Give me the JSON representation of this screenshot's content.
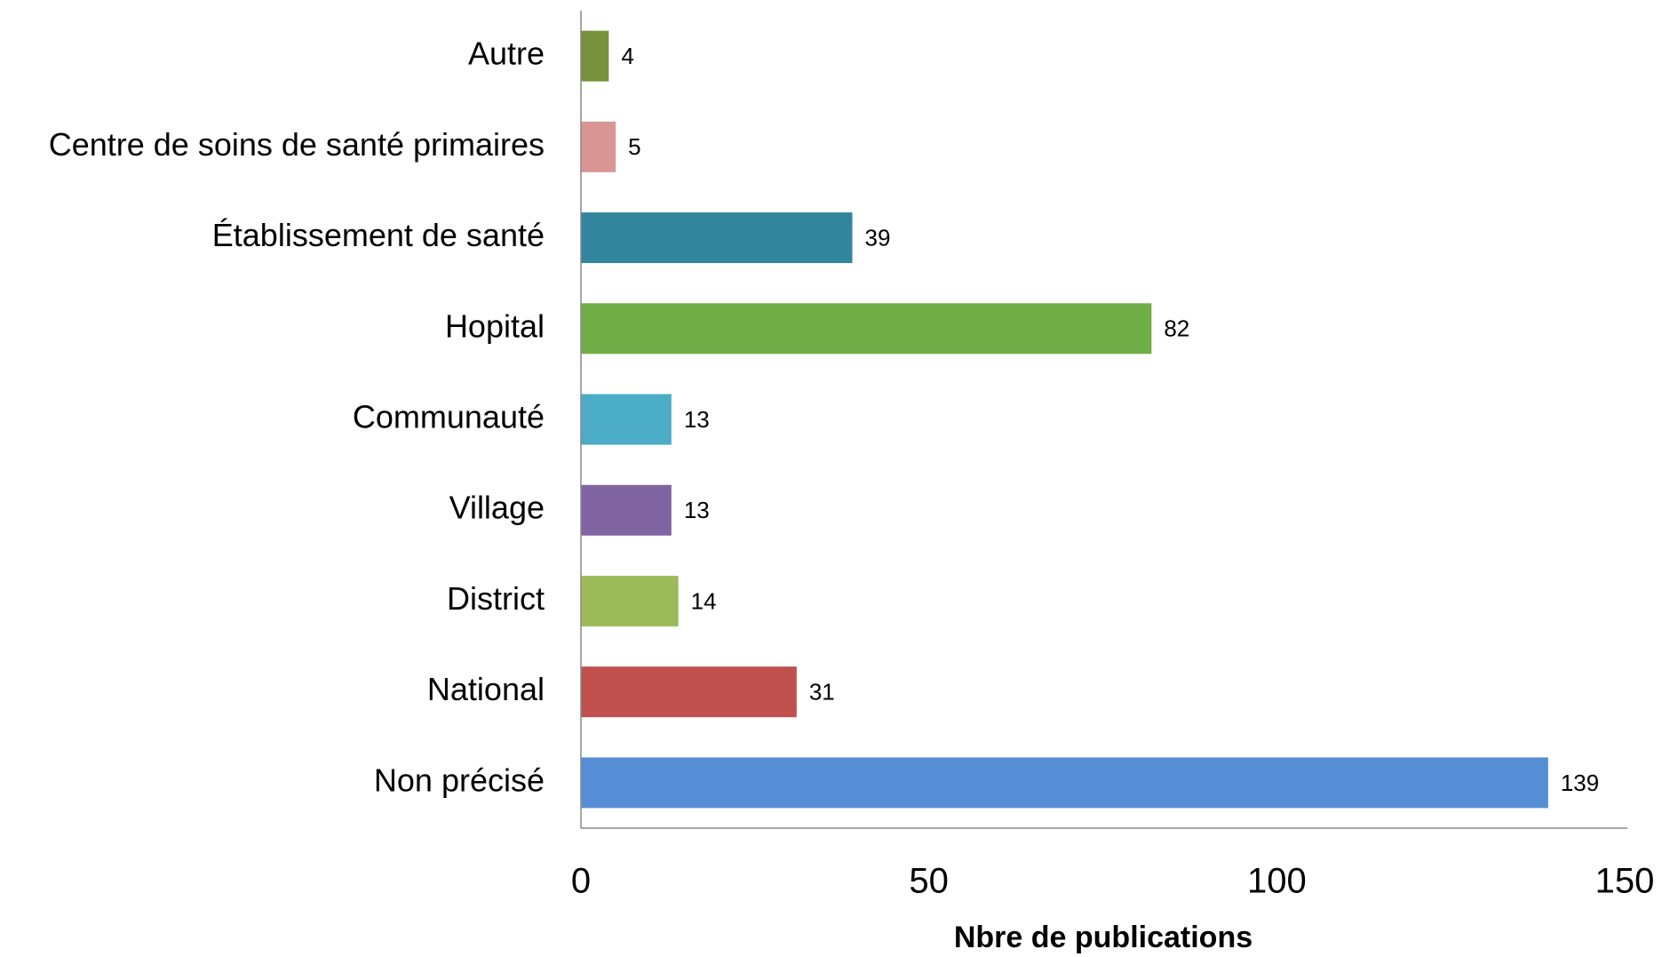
{
  "chart_data": {
    "type": "hbar",
    "x_label": "Nbre de publications",
    "categories": [
      "Autre",
      "Centre de soins de santé primaires",
      "Établissement de santé",
      "Hopital",
      "Communauté",
      "Village",
      "District",
      "National",
      "Non précisé"
    ],
    "values": [
      4,
      5,
      39,
      82,
      13,
      13,
      14,
      31,
      139
    ],
    "colors": [
      "#76923c",
      "#d99694",
      "#31859c",
      "#70ad47",
      "#4bacc6",
      "#8064a2",
      "#9bbb59",
      "#c0504d",
      "#558ed5"
    ],
    "xlim": [
      0,
      150
    ],
    "xticks": [
      0,
      50,
      100,
      150
    ],
    "grid": false
  }
}
